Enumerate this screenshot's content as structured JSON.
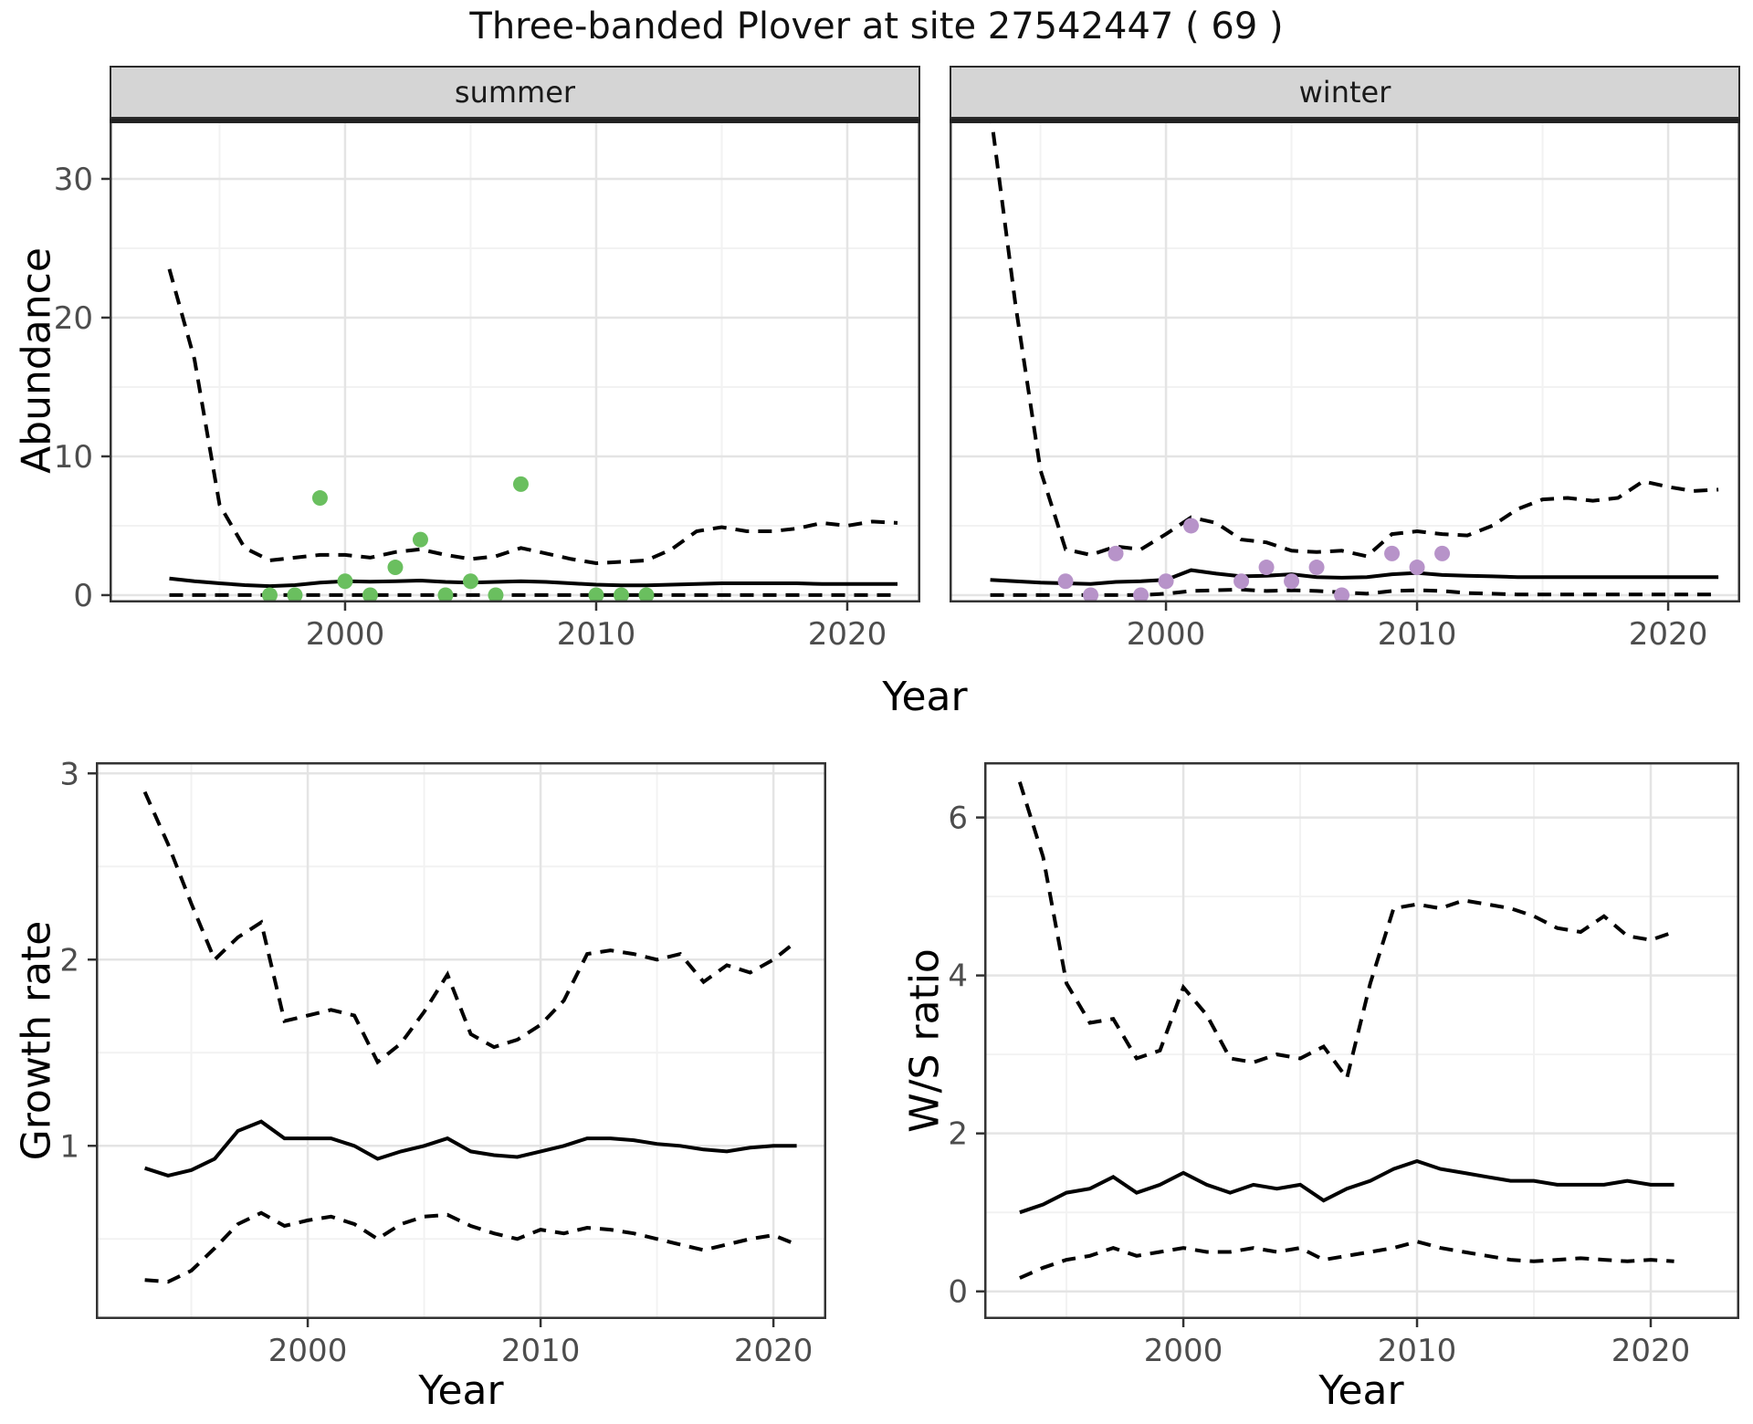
{
  "title": "Three-banded Plover at site 27542447 ( 69 )",
  "facets": {
    "summer": "summer",
    "winter": "winter"
  },
  "axis_titles": {
    "abundance": "Abundance",
    "year_top": "Year",
    "growth_rate": "Growth rate",
    "ws_ratio": "W/S ratio",
    "year_bottom_left": "Year",
    "year_bottom_right": "Year"
  },
  "colors": {
    "summer_points": "#6abf5f",
    "winter_points": "#b793c9",
    "line": "#000000",
    "grid_major": "#e4e4e4",
    "grid_minor": "#f2f2f2",
    "panel_border": "#333333",
    "tick_text": "#4d4d4d",
    "strip_bg": "#d5d5d5"
  },
  "chart_data": [
    {
      "id": "abundance-summer",
      "type": "line",
      "facet": "summer",
      "ylabel": "Abundance",
      "xlabel": "Year",
      "x": [
        1993,
        1994,
        1995,
        1996,
        1997,
        1998,
        1999,
        2000,
        2001,
        2002,
        2003,
        2004,
        2005,
        2006,
        2007,
        2008,
        2009,
        2010,
        2011,
        2012,
        2013,
        2014,
        2015,
        2016,
        2017,
        2018,
        2019,
        2020,
        2021,
        2022
      ],
      "series": [
        {
          "name": "upper95",
          "style": "dashed",
          "values": [
            23.5,
            17.0,
            6.5,
            3.4,
            2.5,
            2.7,
            2.9,
            2.9,
            2.7,
            3.1,
            3.3,
            2.9,
            2.6,
            2.8,
            3.4,
            3.0,
            2.6,
            2.3,
            2.4,
            2.5,
            3.3,
            4.6,
            4.9,
            4.6,
            4.6,
            4.8,
            5.2,
            5.0,
            5.3,
            5.2
          ]
        },
        {
          "name": "median",
          "style": "solid",
          "values": [
            1.2,
            1.0,
            0.85,
            0.72,
            0.65,
            0.72,
            0.9,
            1.0,
            0.97,
            1.0,
            1.05,
            0.95,
            0.9,
            0.95,
            1.0,
            0.95,
            0.85,
            0.75,
            0.7,
            0.7,
            0.75,
            0.8,
            0.85,
            0.85,
            0.85,
            0.85,
            0.8,
            0.8,
            0.8,
            0.8
          ]
        },
        {
          "name": "lower95",
          "style": "dashed",
          "values": [
            0,
            0,
            0,
            0,
            0,
            0,
            0,
            0,
            0,
            0,
            0,
            0,
            0,
            0,
            0,
            0,
            0,
            0,
            0,
            0,
            0,
            0,
            0,
            0,
            0,
            0,
            0,
            0,
            0,
            0
          ]
        }
      ],
      "points": {
        "x": [
          1997,
          1998,
          1999,
          2000,
          2001,
          2002,
          2003,
          2004,
          2005,
          2006,
          2007,
          2010,
          2011,
          2012
        ],
        "y": [
          0,
          0,
          7,
          1,
          0,
          2,
          4,
          0,
          1,
          0,
          8,
          0,
          0,
          0
        ],
        "color": "#6abf5f"
      },
      "xlim": [
        1990.62,
        2022.91
      ],
      "ylim": [
        -0.53,
        34.34
      ],
      "xticks": [
        2000,
        2010,
        2020
      ],
      "xtick_labels": [
        "2000",
        "2010",
        "2020"
      ],
      "xminor": [
        1995,
        2005,
        2015
      ],
      "yticks": [
        0,
        10,
        20,
        30
      ],
      "ytick_labels": [
        "0",
        "10",
        "20",
        "30"
      ],
      "yminor": [
        5,
        15,
        25
      ]
    },
    {
      "id": "abundance-winter",
      "type": "line",
      "facet": "winter",
      "ylabel": "Abundance",
      "xlabel": "Year",
      "x": [
        1993,
        1994,
        1995,
        1996,
        1997,
        1998,
        1999,
        2000,
        2001,
        2002,
        2003,
        2004,
        2005,
        2006,
        2007,
        2008,
        2009,
        2010,
        2011,
        2012,
        2013,
        2014,
        2015,
        2016,
        2017,
        2018,
        2019,
        2020,
        2021,
        2022
      ],
      "series": [
        {
          "name": "upper95",
          "style": "dashed",
          "values": [
            35,
            21,
            9,
            3.3,
            2.9,
            3.5,
            3.3,
            4.4,
            5.6,
            5.2,
            4.0,
            3.8,
            3.2,
            3.1,
            3.2,
            2.8,
            4.4,
            4.6,
            4.4,
            4.3,
            5.0,
            6.2,
            6.9,
            7.0,
            6.8,
            7.0,
            8.2,
            7.8,
            7.5,
            7.6
          ]
        },
        {
          "name": "median",
          "style": "solid",
          "values": [
            1.1,
            1.0,
            0.9,
            0.85,
            0.8,
            0.95,
            1.0,
            1.1,
            1.8,
            1.55,
            1.35,
            1.4,
            1.5,
            1.3,
            1.25,
            1.3,
            1.5,
            1.6,
            1.45,
            1.4,
            1.35,
            1.3,
            1.3,
            1.3,
            1.3,
            1.3,
            1.3,
            1.3,
            1.3,
            1.3
          ]
        },
        {
          "name": "lower95",
          "style": "dashed",
          "values": [
            0,
            0,
            0,
            0,
            0,
            0,
            0,
            0.1,
            0.3,
            0.35,
            0.4,
            0.3,
            0.35,
            0.3,
            0.2,
            0.1,
            0.3,
            0.35,
            0.3,
            0.15,
            0.1,
            0.05,
            0.05,
            0.05,
            0.05,
            0.05,
            0.05,
            0.05,
            0.05,
            0.05
          ]
        }
      ],
      "points": {
        "x": [
          1996,
          1997,
          1998,
          1999,
          2000,
          2001,
          2003,
          2004,
          2005,
          2006,
          2007,
          2009,
          2010,
          2011
        ],
        "y": [
          1,
          0,
          3,
          0,
          1,
          5,
          1,
          2,
          1,
          2,
          0,
          3,
          2,
          3
        ],
        "color": "#b793c9"
      },
      "xlim": [
        1991.38,
        2022.87
      ],
      "ylim": [
        -0.53,
        34.34
      ],
      "xticks": [
        2000,
        2010,
        2020
      ],
      "xtick_labels": [
        "2000",
        "2010",
        "2020"
      ],
      "xminor": [
        1995,
        2005,
        2015
      ],
      "yticks": [
        0,
        10,
        20,
        30
      ],
      "ytick_labels": null,
      "yminor": [
        5,
        15,
        25
      ]
    },
    {
      "id": "growth",
      "type": "line",
      "facet": null,
      "ylabel": "Growth rate",
      "xlabel": "Year",
      "x": [
        1993,
        1994,
        1995,
        1996,
        1997,
        1998,
        1999,
        2000,
        2001,
        2002,
        2003,
        2004,
        2005,
        2006,
        2007,
        2008,
        2009,
        2010,
        2011,
        2012,
        2013,
        2014,
        2015,
        2016,
        2017,
        2018,
        2019,
        2020,
        2021
      ],
      "series": [
        {
          "name": "upper95",
          "style": "dashed",
          "values": [
            2.9,
            2.62,
            2.3,
            2.0,
            2.12,
            2.2,
            1.67,
            1.7,
            1.73,
            1.7,
            1.45,
            1.55,
            1.72,
            1.92,
            1.6,
            1.53,
            1.57,
            1.65,
            1.78,
            2.03,
            2.05,
            2.03,
            2.0,
            2.03,
            1.88,
            1.97,
            1.93,
            2.0,
            2.1
          ]
        },
        {
          "name": "median",
          "style": "solid",
          "values": [
            0.88,
            0.84,
            0.87,
            0.93,
            1.08,
            1.13,
            1.04,
            1.04,
            1.04,
            1.0,
            0.93,
            0.97,
            1.0,
            1.04,
            0.97,
            0.95,
            0.94,
            0.97,
            1.0,
            1.04,
            1.04,
            1.03,
            1.01,
            1.0,
            0.98,
            0.97,
            0.99,
            1.0,
            1.0
          ]
        },
        {
          "name": "lower95",
          "style": "dashed",
          "values": [
            0.28,
            0.27,
            0.33,
            0.45,
            0.58,
            0.64,
            0.57,
            0.6,
            0.62,
            0.58,
            0.5,
            0.58,
            0.62,
            0.63,
            0.57,
            0.53,
            0.5,
            0.55,
            0.53,
            0.56,
            0.55,
            0.53,
            0.5,
            0.47,
            0.44,
            0.47,
            0.5,
            0.52,
            0.47
          ]
        }
      ],
      "points": null,
      "xlim": [
        1990.9,
        2022.27
      ],
      "ylim": [
        0.07,
        3.06
      ],
      "xticks": [
        2000,
        2010,
        2020
      ],
      "xtick_labels": [
        "2000",
        "2010",
        "2020"
      ],
      "xminor": [
        1995,
        2005,
        2015
      ],
      "yticks": [
        1,
        2,
        3
      ],
      "ytick_labels": [
        "1",
        "2",
        "3"
      ],
      "yminor": [
        0.5,
        1.5,
        2.5
      ]
    },
    {
      "id": "ws",
      "type": "line",
      "facet": null,
      "ylabel": "W/S ratio",
      "xlabel": "Year",
      "x": [
        1993,
        1994,
        1995,
        1996,
        1997,
        1998,
        1999,
        2000,
        2001,
        2002,
        2003,
        2004,
        2005,
        2006,
        2007,
        2008,
        2009,
        2010,
        2011,
        2012,
        2013,
        2014,
        2015,
        2016,
        2017,
        2018,
        2019,
        2020,
        2021
      ],
      "series": [
        {
          "name": "upper95",
          "style": "dashed",
          "values": [
            6.45,
            5.5,
            3.9,
            3.4,
            3.45,
            2.95,
            3.05,
            3.85,
            3.5,
            2.95,
            2.9,
            3.0,
            2.95,
            3.1,
            2.7,
            3.9,
            4.85,
            4.9,
            4.85,
            4.95,
            4.9,
            4.85,
            4.75,
            4.6,
            4.55,
            4.75,
            4.5,
            4.45,
            4.55
          ]
        },
        {
          "name": "median",
          "style": "solid",
          "values": [
            1.0,
            1.1,
            1.25,
            1.3,
            1.45,
            1.25,
            1.35,
            1.5,
            1.35,
            1.25,
            1.35,
            1.3,
            1.35,
            1.15,
            1.3,
            1.4,
            1.55,
            1.65,
            1.55,
            1.5,
            1.45,
            1.4,
            1.4,
            1.35,
            1.35,
            1.35,
            1.4,
            1.35,
            1.35
          ]
        },
        {
          "name": "lower95",
          "style": "dashed",
          "values": [
            0.17,
            0.3,
            0.4,
            0.45,
            0.55,
            0.45,
            0.5,
            0.55,
            0.5,
            0.5,
            0.55,
            0.5,
            0.55,
            0.4,
            0.45,
            0.5,
            0.55,
            0.63,
            0.55,
            0.5,
            0.45,
            0.4,
            0.38,
            0.4,
            0.42,
            0.4,
            0.38,
            0.4,
            0.38
          ]
        }
      ],
      "points": null,
      "xlim": [
        1991.48,
        2023.79
      ],
      "ylim": [
        -0.35,
        6.7
      ],
      "xticks": [
        2000,
        2010,
        2020
      ],
      "xtick_labels": [
        "2000",
        "2010",
        "2020"
      ],
      "xminor": [
        1995,
        2005,
        2015
      ],
      "yticks": [
        0,
        2,
        4,
        6
      ],
      "ytick_labels": [
        "0",
        "2",
        "4",
        "6"
      ],
      "yminor": [
        1,
        3,
        5
      ]
    }
  ]
}
